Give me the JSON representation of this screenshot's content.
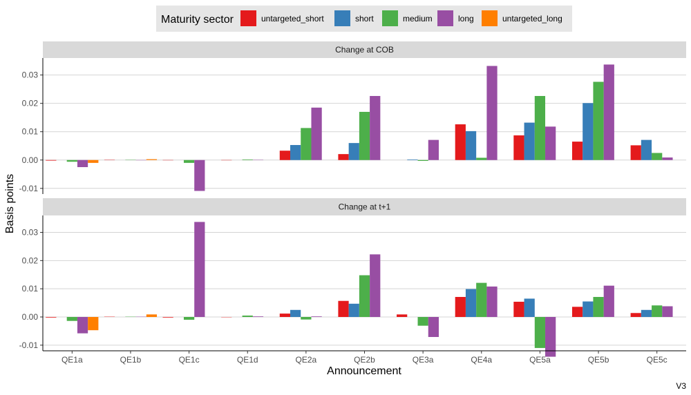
{
  "legend": {
    "title": "Maturity sector",
    "items": [
      {
        "name": "untargeted_short",
        "color": "#e41a1c"
      },
      {
        "name": "short",
        "color": "#377eb8"
      },
      {
        "name": "medium",
        "color": "#4daf4a"
      },
      {
        "name": "long",
        "color": "#984ea3"
      },
      {
        "name": "untargeted_long",
        "color": "#ff7f00"
      }
    ]
  },
  "caption": "V3",
  "chart_data": {
    "type": "bar",
    "xlabel": "Announcement",
    "ylabel": "Basis points",
    "categories": [
      "QE1a",
      "QE1b",
      "QE1c",
      "QE1d",
      "QE2a",
      "QE2b",
      "QE3a",
      "QE4a",
      "QE5a",
      "QE5b",
      "QE5c"
    ],
    "series_order": [
      "untargeted_short",
      "short",
      "medium",
      "long",
      "untargeted_long"
    ],
    "ylim": [
      -0.012,
      0.036
    ],
    "yticks": [
      -0.01,
      0.0,
      0.01,
      0.02,
      0.03
    ],
    "ytick_labels": [
      "-0.01",
      "0.00",
      "0.01",
      "0.02",
      "0.03"
    ],
    "grid": true,
    "legend_position": "top",
    "panels": [
      {
        "title": "Change at COB",
        "series": [
          {
            "name": "untargeted_short",
            "values": [
              -0.0002,
              0.0001,
              -0.0001,
              0.0,
              0.0033,
              0.0021,
              null,
              0.0126,
              0.0087,
              0.0065,
              0.0052
            ]
          },
          {
            "name": "short",
            "values": [
              null,
              null,
              null,
              null,
              0.0053,
              0.006,
              0.0002,
              0.0102,
              0.0132,
              0.0201,
              0.0071
            ]
          },
          {
            "name": "medium",
            "values": [
              -0.0006,
              0.0001,
              -0.001,
              0.0002,
              0.0113,
              0.017,
              -0.0003,
              0.0008,
              0.0226,
              0.0276,
              0.0025
            ]
          },
          {
            "name": "long",
            "values": [
              -0.0025,
              0.0,
              -0.0109,
              0.0001,
              0.0185,
              0.0226,
              0.0071,
              0.0332,
              0.0118,
              0.0337,
              0.0009
            ]
          },
          {
            "name": "untargeted_long",
            "values": [
              -0.001,
              0.0003,
              null,
              null,
              null,
              null,
              null,
              null,
              null,
              null,
              null
            ]
          }
        ]
      },
      {
        "title": "Change at t+1",
        "series": [
          {
            "name": "untargeted_short",
            "values": [
              -0.0002,
              0.0001,
              -0.0002,
              0.0,
              0.0012,
              0.0057,
              0.0009,
              0.0071,
              0.0054,
              0.0036,
              0.0014
            ]
          },
          {
            "name": "short",
            "values": [
              null,
              null,
              null,
              null,
              0.0025,
              0.0047,
              null,
              0.0099,
              0.0065,
              0.0055,
              0.0025
            ]
          },
          {
            "name": "medium",
            "values": [
              -0.0014,
              0.0001,
              -0.001,
              0.0005,
              -0.0009,
              0.0148,
              -0.0031,
              0.0121,
              -0.011,
              0.0071,
              0.0041
            ]
          },
          {
            "name": "long",
            "values": [
              -0.0058,
              0.0001,
              0.0337,
              0.0002,
              0.0002,
              0.0222,
              -0.0071,
              0.0108,
              -0.0141,
              0.0111,
              0.0038
            ]
          },
          {
            "name": "untargeted_long",
            "values": [
              -0.0047,
              0.0009,
              null,
              null,
              null,
              null,
              null,
              null,
              null,
              null,
              null
            ]
          }
        ]
      }
    ]
  }
}
